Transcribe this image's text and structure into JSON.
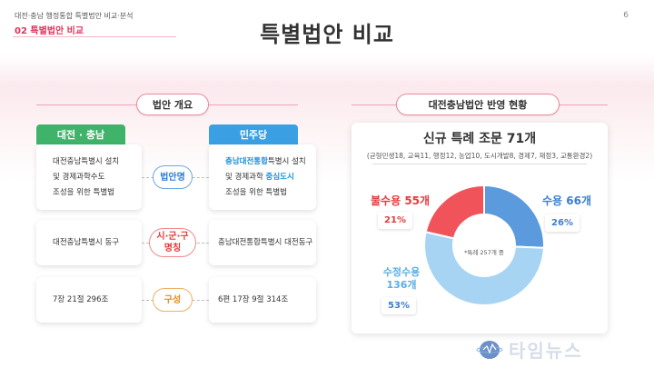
{
  "header": {
    "subtitle": "대전·충남 행정통합 특별법안 비교·분석",
    "section": "02 특별법안 비교",
    "page_number": "6"
  },
  "title": "특별법안 비교",
  "left": {
    "section_title": "법안 개요",
    "tab_left": "대전 · 충남",
    "tab_right": "민주당",
    "rows": [
      {
        "label": "법안명",
        "left_lines": [
          "대전충남특별시 설치",
          "및 경제과학수도",
          "조성을 위한 특별법"
        ],
        "right_line1_hl": "충남대전통합",
        "right_line1_rest": "특별시 설치",
        "right_line2_pre": "및 경제과학 ",
        "right_line2_hl": "중심도시",
        "right_line3": "조성을 위한 특별법"
      },
      {
        "label_line1": "시·군·구",
        "label_line2": "명칭",
        "left_text": "대전충남특별시 동구",
        "right_text": "충남대전통합특별시 대전동구"
      },
      {
        "label": "구성",
        "left_text": "7장 21절 296조",
        "right_text": "6편 17장 9절 314조"
      }
    ]
  },
  "right": {
    "section_title": "대전충남법안 반영 현황",
    "panel_title": "신규 특례 조문 71개",
    "panel_subtitle": "(균형민생18, 교육11, 행정12, 농업10, 도시개발8, 경제7, 재정3, 교통환경2)",
    "center_note": "*특례 257개 중"
  },
  "chart_data": {
    "type": "pie",
    "categories": [
      "수용",
      "수정수용",
      "불수용"
    ],
    "values": [
      66,
      136,
      55
    ],
    "percents": [
      "26%",
      "53%",
      "21%"
    ],
    "count_labels": [
      "수용 66개",
      "수정수용 136개",
      "불수용 55개"
    ],
    "colors": [
      "#5b9bdd",
      "#a8d4f4",
      "#f0545a"
    ],
    "total": 257
  },
  "labels": {
    "accept": "수용",
    "accept_count": "66개",
    "accept_pct": "26%",
    "modified": "수정수용",
    "modified_count": "136개",
    "modified_pct": "53%",
    "reject": "불수용",
    "reject_count": "55개",
    "reject_pct": "21%"
  },
  "logo": {
    "text": "타임뉴스"
  }
}
